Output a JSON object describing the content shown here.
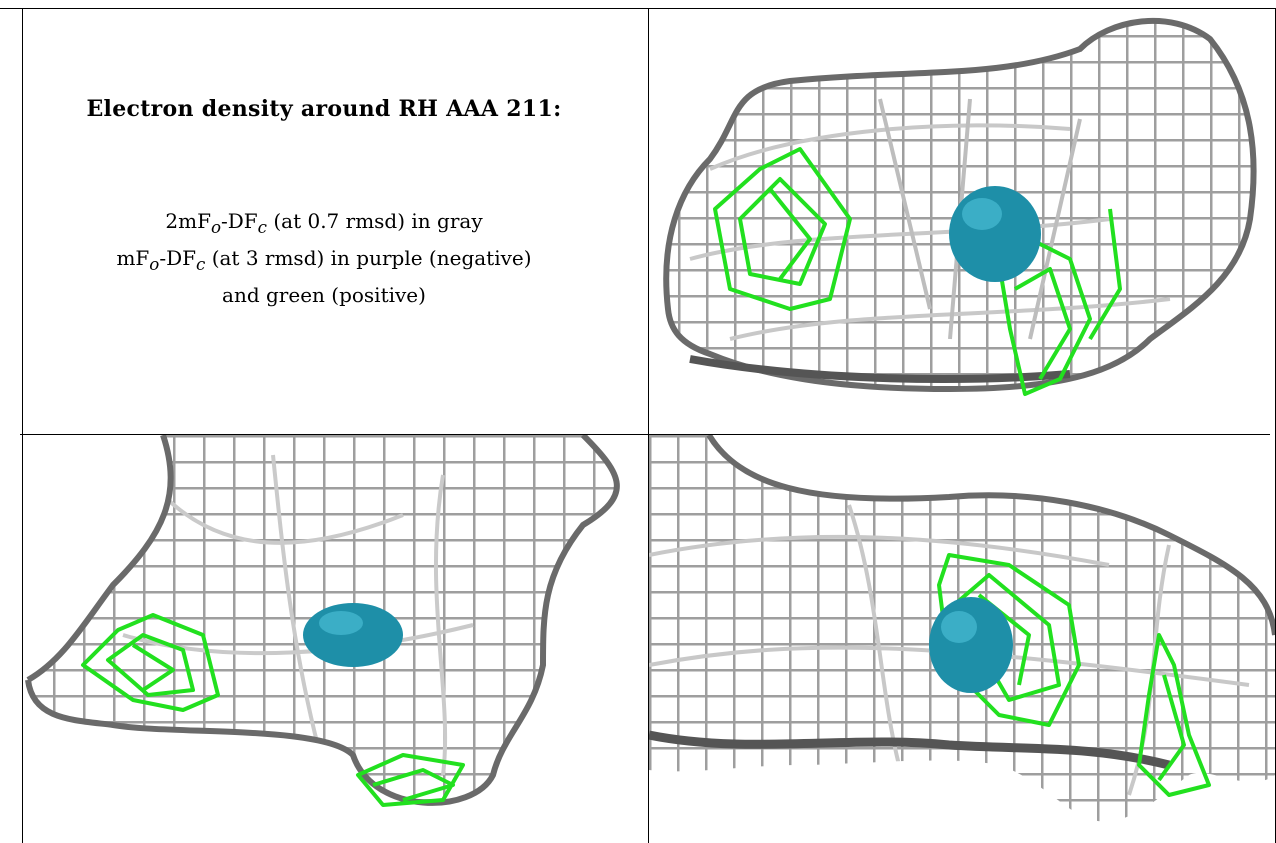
{
  "caption": {
    "title": "Electron density around RH AAA 211:",
    "line1": {
      "pre": "2mF",
      "sub1": "o",
      "mid": "-DF",
      "sub2": "c",
      "post": " (at 0.7 rmsd) in gray"
    },
    "line2": {
      "pre": "mF",
      "sub1": "o",
      "mid": "-DF",
      "sub2": "c",
      "post": " (at 3 rmsd) in purple (negative)"
    },
    "line3": "and green (positive)"
  },
  "colors": {
    "mesh_gray": "#9c9c9c",
    "mesh_dark": "#5a5a5a",
    "difference_positive": "#22e01f",
    "atom": "#1e8fa8",
    "border": "#000000"
  },
  "panels": [
    {
      "name": "density-view-top-right"
    },
    {
      "name": "density-view-bottom-left"
    },
    {
      "name": "density-view-bottom-right"
    }
  ]
}
